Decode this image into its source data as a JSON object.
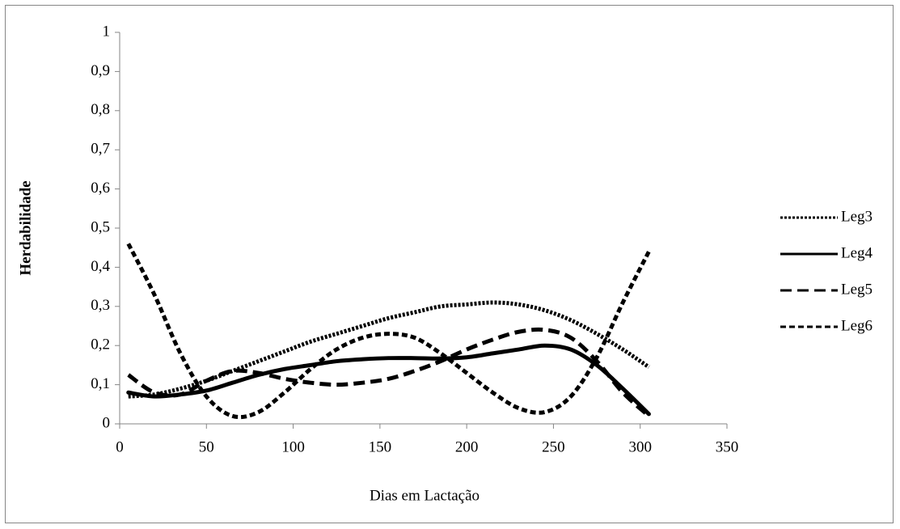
{
  "chart_data": {
    "type": "line",
    "x_label": "Dias em Lactação",
    "y_label": "Herdabilidade",
    "x": [
      5,
      20,
      35,
      50,
      65,
      80,
      95,
      110,
      125,
      140,
      155,
      170,
      185,
      200,
      215,
      230,
      245,
      260,
      275,
      290,
      305
    ],
    "series": [
      {
        "name": "Leg3",
        "color": "#000000",
        "dash": "dotted",
        "values": [
          0.07,
          0.075,
          0.09,
          0.11,
          0.135,
          0.16,
          0.185,
          0.21,
          0.23,
          0.25,
          0.27,
          0.285,
          0.3,
          0.305,
          0.31,
          0.305,
          0.29,
          0.265,
          0.23,
          0.19,
          0.145
        ]
      },
      {
        "name": "Leg4",
        "color": "#000000",
        "dash": "solid",
        "values": [
          0.08,
          0.07,
          0.075,
          0.085,
          0.105,
          0.125,
          0.14,
          0.15,
          0.16,
          0.165,
          0.168,
          0.168,
          0.167,
          0.17,
          0.18,
          0.19,
          0.2,
          0.19,
          0.15,
          0.09,
          0.025
        ]
      },
      {
        "name": "Leg5",
        "color": "#000000",
        "dash": "dashed",
        "values": [
          0.125,
          0.08,
          0.075,
          0.11,
          0.135,
          0.13,
          0.115,
          0.105,
          0.1,
          0.105,
          0.115,
          0.135,
          0.16,
          0.19,
          0.215,
          0.235,
          0.24,
          0.22,
          0.16,
          0.08,
          0.02
        ]
      },
      {
        "name": "Leg6",
        "color": "#000000",
        "dash": "short-dashed",
        "values": [
          0.46,
          0.33,
          0.18,
          0.07,
          0.02,
          0.03,
          0.08,
          0.14,
          0.19,
          0.22,
          0.23,
          0.22,
          0.18,
          0.13,
          0.08,
          0.04,
          0.03,
          0.07,
          0.17,
          0.31,
          0.44
        ]
      }
    ],
    "xlim": [
      0,
      350
    ],
    "xticks": [
      0,
      50,
      100,
      150,
      200,
      250,
      300,
      350
    ],
    "ylim": [
      0,
      1
    ],
    "yticks": [
      0,
      {
        "value": 0.1,
        "label": "0,1"
      },
      {
        "value": 0.2,
        "label": "0,2"
      },
      {
        "value": 0.3,
        "label": "0,3"
      },
      {
        "value": 0.4,
        "label": "0,4"
      },
      {
        "value": 0.5,
        "label": "0,5"
      },
      {
        "value": 0.6,
        "label": "0,6"
      },
      {
        "value": 0.7,
        "label": "0,7"
      },
      {
        "value": 0.8,
        "label": "0,8"
      },
      {
        "value": 0.9,
        "label": "0,9"
      },
      1
    ],
    "grid": false,
    "legend": "right"
  }
}
